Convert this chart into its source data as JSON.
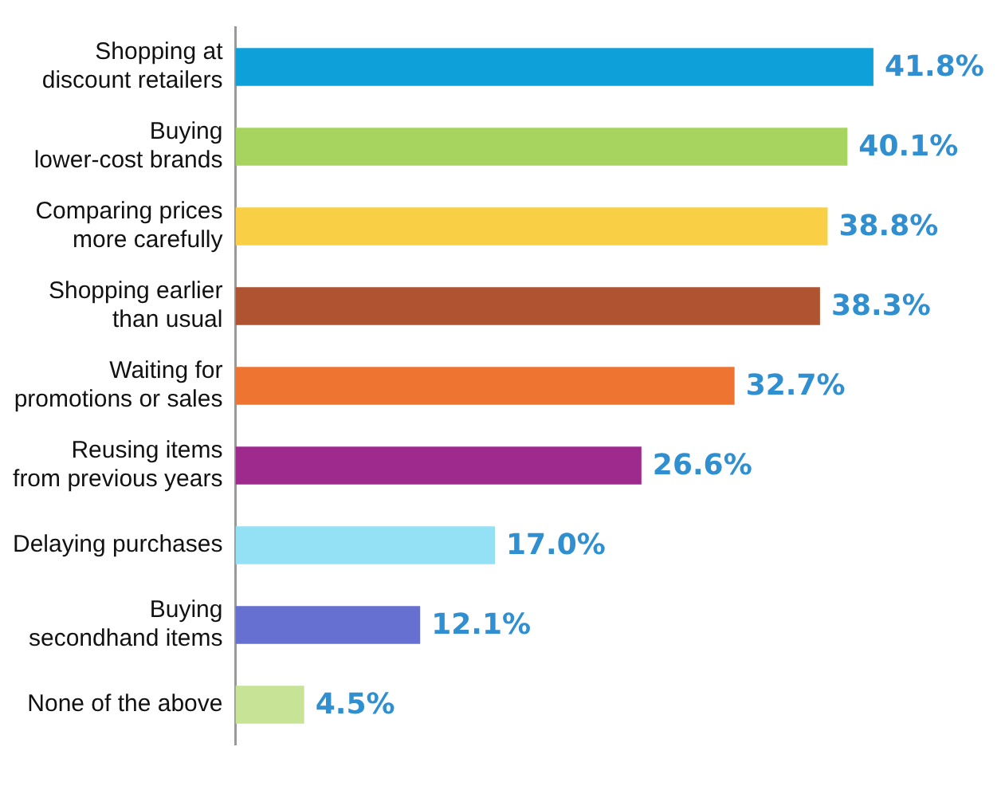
{
  "chart_data": {
    "type": "bar",
    "orientation": "horizontal",
    "categories": [
      "Shopping at\ndiscount retailers",
      "Buying\nlower-cost brands",
      "Comparing prices\nmore carefully",
      "Shopping earlier\nthan usual",
      "Waiting for\npromotions or sales",
      "Reusing items\nfrom previous years",
      "Delaying purchases",
      "Buying\nsecondhand items",
      "None of the above"
    ],
    "values": [
      41.8,
      40.1,
      38.8,
      38.3,
      32.7,
      26.6,
      17.0,
      12.1,
      4.5
    ],
    "colors": [
      "#0ea0d8",
      "#a6d45e",
      "#f8cf45",
      "#b05330",
      "#ee7432",
      "#9e2a8e",
      "#94e0f5",
      "#6670d0",
      "#c7e396"
    ],
    "value_labels": [
      "41.8%",
      "40.1%",
      "38.8%",
      "38.3%",
      "32.7%",
      "26.6%",
      "17.0%",
      "12.1%",
      "4.5%"
    ],
    "grid": false,
    "legend": false
  }
}
